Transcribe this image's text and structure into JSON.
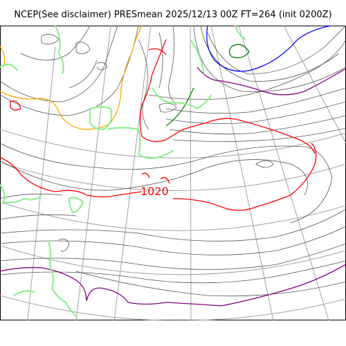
{
  "title": "NCEP(See disclaimer) PRESmean 2025/12/13 00Z FT=264 (init 0200Z)",
  "contour_label": "1020",
  "colors": {
    "coast": "#90ee90",
    "graticule": "#a0a0a0",
    "isobar_thin": "#555555",
    "isobar_1020": "#ff0000",
    "isobar_purple": "#800080",
    "isobar_blue": "#0000ff",
    "isobar_green": "#008000",
    "isobar_orange": "#ffa500"
  }
}
